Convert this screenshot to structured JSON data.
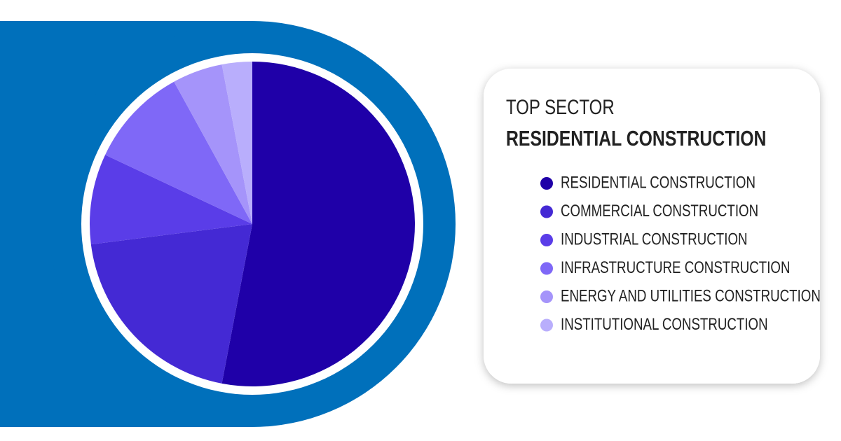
{
  "chart_data": {
    "type": "pie",
    "title": "TOP SECTOR",
    "subtitle": "RESIDENTIAL CONSTRUCTION",
    "categories": [
      "RESIDENTIAL CONSTRUCTION",
      "COMMERCIAL CONSTRUCTION",
      "INDUSTRIAL CONSTRUCTION",
      "INFRASTRUCTURE CONSTRUCTION",
      "ENERGY AND UTILITIES CONSTRUCTION",
      "INSTITUTIONAL CONSTRUCTION"
    ],
    "values": [
      53,
      20,
      9,
      10,
      5,
      3
    ],
    "colors": [
      "#1f00a8",
      "#4429d4",
      "#5a3de8",
      "#7f68f7",
      "#a594fa",
      "#b9aefc"
    ]
  }
}
